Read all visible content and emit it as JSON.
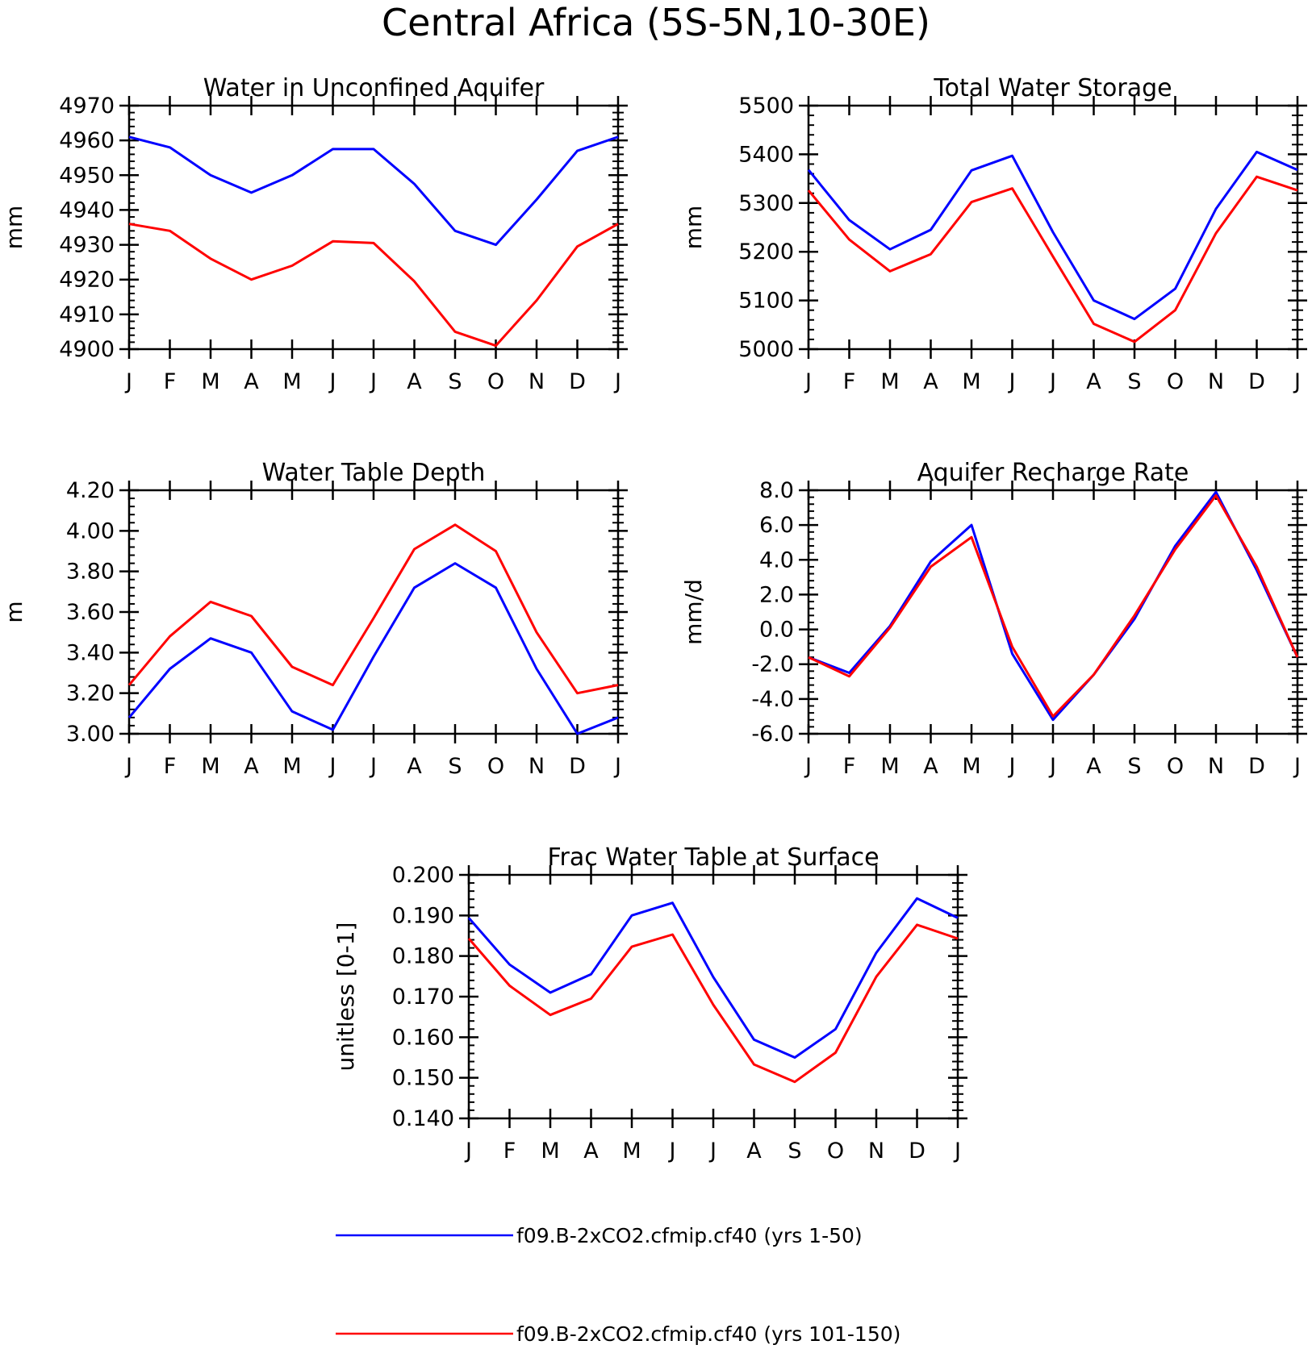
{
  "title": "Central Africa (5S-5N,10-30E)",
  "colors": {
    "axis": "#000000",
    "series_1": "#0000ff",
    "series_2": "#ff0000"
  },
  "legend": {
    "entries": [
      {
        "label": "f09.B-2xCO2.cfmip.cf40 (yrs 1-50)",
        "color": "#0000ff"
      },
      {
        "label": "f09.B-2xCO2.cfmip.cf40 (yrs 101-150)",
        "color": "#ff0000"
      }
    ]
  },
  "chart_data": [
    {
      "type": "line",
      "title": "Water in Unconfined Aquifer",
      "ylabel": "mm",
      "categories": [
        "J",
        "F",
        "M",
        "A",
        "M",
        "J",
        "J",
        "A",
        "S",
        "O",
        "N",
        "D",
        "J"
      ],
      "ylim": [
        4900,
        4970
      ],
      "yticks": [
        "4900",
        "4910",
        "4920",
        "4930",
        "4940",
        "4950",
        "4960",
        "4970"
      ],
      "series": [
        {
          "name": "f09.B-2xCO2.cfmip.cf40 (yrs 1-50)",
          "color": "#0000ff",
          "values": [
            4961,
            4958,
            4950,
            4945,
            4950,
            4957.5,
            4957.5,
            4947.5,
            4934,
            4930,
            4943,
            4957,
            4961
          ]
        },
        {
          "name": "f09.B-2xCO2.cfmip.cf40 (yrs 101-150)",
          "color": "#ff0000",
          "values": [
            4936,
            4934,
            4926,
            4920,
            4924,
            4931,
            4930.5,
            4919.5,
            4905,
            4901,
            4914,
            4929.5,
            4936
          ]
        }
      ]
    },
    {
      "type": "line",
      "title": "Total Water Storage",
      "ylabel": "mm",
      "categories": [
        "J",
        "F",
        "M",
        "A",
        "M",
        "J",
        "J",
        "A",
        "S",
        "O",
        "N",
        "D",
        "J"
      ],
      "ylim": [
        5000,
        5500
      ],
      "yticks": [
        "5000",
        "5100",
        "5200",
        "5300",
        "5400",
        "5500"
      ],
      "series": [
        {
          "name": "f09.B-2xCO2.cfmip.cf40 (yrs 1-50)",
          "color": "#0000ff",
          "values": [
            5368,
            5265,
            5205,
            5245,
            5367,
            5397,
            5240,
            5100,
            5062,
            5124,
            5288,
            5405,
            5368
          ]
        },
        {
          "name": "f09.B-2xCO2.cfmip.cf40 (yrs 101-150)",
          "color": "#ff0000",
          "values": [
            5326,
            5225,
            5160,
            5195,
            5302,
            5330,
            5190,
            5052,
            5015,
            5080,
            5238,
            5354,
            5326
          ]
        }
      ]
    },
    {
      "type": "line",
      "title": "Water Table Depth",
      "ylabel": "m",
      "categories": [
        "J",
        "F",
        "M",
        "A",
        "M",
        "J",
        "J",
        "A",
        "S",
        "O",
        "N",
        "D",
        "J"
      ],
      "ylim": [
        3.0,
        4.2
      ],
      "yticks": [
        "3.00",
        "3.20",
        "3.40",
        "3.60",
        "3.80",
        "4.00",
        "4.20"
      ],
      "series": [
        {
          "name": "f09.B-2xCO2.cfmip.cf40 (yrs 1-50)",
          "color": "#0000ff",
          "values": [
            3.08,
            3.32,
            3.47,
            3.4,
            3.11,
            3.02,
            3.38,
            3.72,
            3.84,
            3.72,
            3.32,
            3.0,
            3.08
          ]
        },
        {
          "name": "f09.B-2xCO2.cfmip.cf40 (yrs 101-150)",
          "color": "#ff0000",
          "values": [
            3.24,
            3.48,
            3.65,
            3.58,
            3.33,
            3.24,
            3.57,
            3.91,
            4.03,
            3.9,
            3.5,
            3.2,
            3.24
          ]
        }
      ]
    },
    {
      "type": "line",
      "title": "Aquifer Recharge Rate",
      "ylabel": "mm/d",
      "categories": [
        "J",
        "F",
        "M",
        "A",
        "M",
        "J",
        "J",
        "A",
        "S",
        "O",
        "N",
        "D",
        "J"
      ],
      "ylim": [
        -6.0,
        8.0
      ],
      "yticks": [
        "-6.0",
        "-4.0",
        "-2.0",
        "0.0",
        "2.0",
        "4.0",
        "6.0",
        "8.0"
      ],
      "series": [
        {
          "name": "f09.B-2xCO2.cfmip.cf40 (yrs 1-50)",
          "color": "#0000ff",
          "values": [
            -1.6,
            -2.5,
            0.2,
            3.9,
            6.0,
            -1.4,
            -5.2,
            -2.6,
            0.6,
            4.8,
            7.9,
            3.4,
            -1.6
          ]
        },
        {
          "name": "f09.B-2xCO2.cfmip.cf40 (yrs 101-150)",
          "color": "#ff0000",
          "values": [
            -1.6,
            -2.7,
            0.1,
            3.6,
            5.3,
            -1.0,
            -5.0,
            -2.6,
            0.8,
            4.6,
            7.7,
            3.6,
            -1.6
          ]
        }
      ]
    },
    {
      "type": "line",
      "title": "Frac Water Table at Surface",
      "ylabel": "unitless [0-1]",
      "categories": [
        "J",
        "F",
        "M",
        "A",
        "M",
        "J",
        "J",
        "A",
        "S",
        "O",
        "N",
        "D",
        "J"
      ],
      "ylim": [
        0.14,
        0.2
      ],
      "yticks": [
        "0.140",
        "0.150",
        "0.160",
        "0.170",
        "0.180",
        "0.190",
        "0.200"
      ],
      "series": [
        {
          "name": "f09.B-2xCO2.cfmip.cf40 (yrs 1-50)",
          "color": "#0000ff",
          "values": [
            0.1894,
            0.1779,
            0.171,
            0.1755,
            0.19,
            0.1931,
            0.1748,
            0.1594,
            0.155,
            0.162,
            0.1808,
            0.1942,
            0.1894
          ]
        },
        {
          "name": "f09.B-2xCO2.cfmip.cf40 (yrs 101-150)",
          "color": "#ff0000",
          "values": [
            0.1843,
            0.1727,
            0.1655,
            0.1695,
            0.1823,
            0.1853,
            0.168,
            0.1533,
            0.149,
            0.1562,
            0.1749,
            0.1877,
            0.1843
          ]
        }
      ]
    }
  ]
}
